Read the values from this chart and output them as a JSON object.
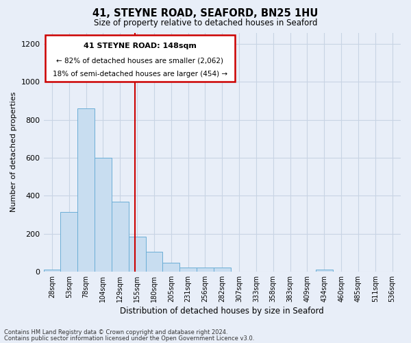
{
  "title": "41, STEYNE ROAD, SEAFORD, BN25 1HU",
  "subtitle": "Size of property relative to detached houses in Seaford",
  "xlabel": "Distribution of detached houses by size in Seaford",
  "ylabel": "Number of detached properties",
  "bar_color": "#c8ddf0",
  "bar_edge_color": "#6baed6",
  "bins": [
    "28sqm",
    "53sqm",
    "78sqm",
    "104sqm",
    "129sqm",
    "155sqm",
    "180sqm",
    "205sqm",
    "231sqm",
    "256sqm",
    "282sqm",
    "307sqm",
    "333sqm",
    "358sqm",
    "383sqm",
    "409sqm",
    "434sqm",
    "460sqm",
    "485sqm",
    "511sqm",
    "536sqm"
  ],
  "values": [
    10,
    315,
    860,
    600,
    370,
    185,
    105,
    45,
    20,
    20,
    20,
    0,
    0,
    0,
    0,
    0,
    10,
    0,
    0,
    0,
    0
  ],
  "ylim": [
    0,
    1260
  ],
  "yticks": [
    0,
    200,
    400,
    600,
    800,
    1000,
    1200
  ],
  "property_line_x": 4.88,
  "annotation_title": "41 STEYNE ROAD: 148sqm",
  "annotation_line1": "← 82% of detached houses are smaller (2,062)",
  "annotation_line2": "18% of semi-detached houses are larger (454) →",
  "footer_line1": "Contains HM Land Registry data © Crown copyright and database right 2024.",
  "footer_line2": "Contains public sector information licensed under the Open Government Licence v3.0.",
  "background_color": "#e8eef8",
  "plot_bg_color": "#e8eef8",
  "grid_color": "#c8d4e4"
}
